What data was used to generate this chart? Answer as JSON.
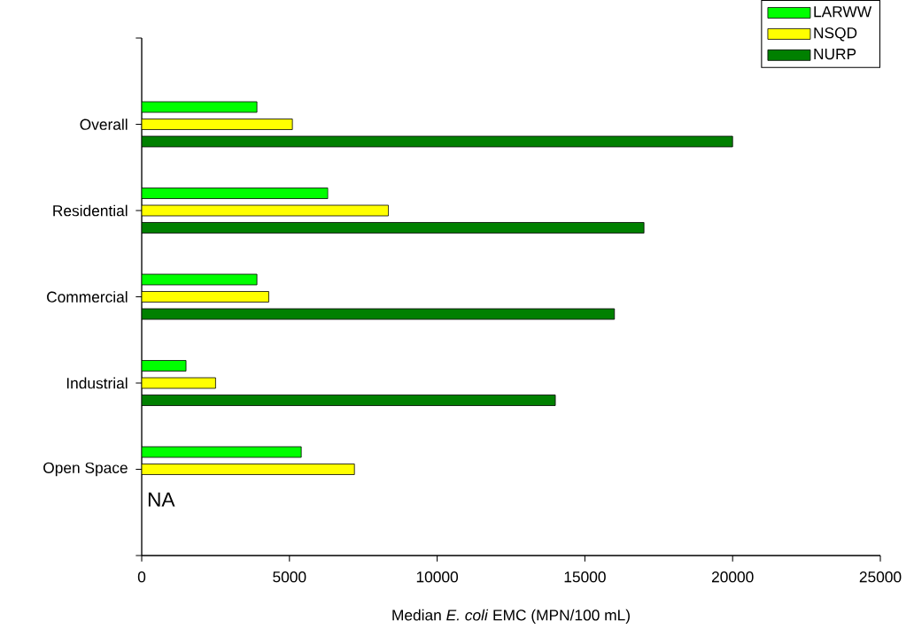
{
  "chart_data": {
    "type": "bar",
    "orientation": "horizontal",
    "xlabel": "Median *E. coli* EMC (MPN/100 mL)",
    "categories": [
      "Overall",
      "Residential",
      "Commercial",
      "Industrial",
      "Open Space"
    ],
    "series": [
      {
        "name": "LARWW",
        "color": "#00ff00",
        "values": [
          3900,
          6300,
          3900,
          1500,
          5400
        ]
      },
      {
        "name": "NSQD",
        "color": "#ffff00",
        "values": [
          5100,
          8350,
          4300,
          2500,
          7200
        ]
      },
      {
        "name": "NURP",
        "color": "#008000",
        "values": [
          20000,
          17000,
          16000,
          14000,
          null
        ]
      }
    ],
    "xlim": [
      0,
      25000
    ],
    "xticks": [
      0,
      5000,
      10000,
      15000,
      20000,
      25000
    ],
    "annotations": [
      {
        "text": "NA",
        "x": 0,
        "y": "Open Space"
      }
    ],
    "legend": "top right",
    "grid": false
  }
}
